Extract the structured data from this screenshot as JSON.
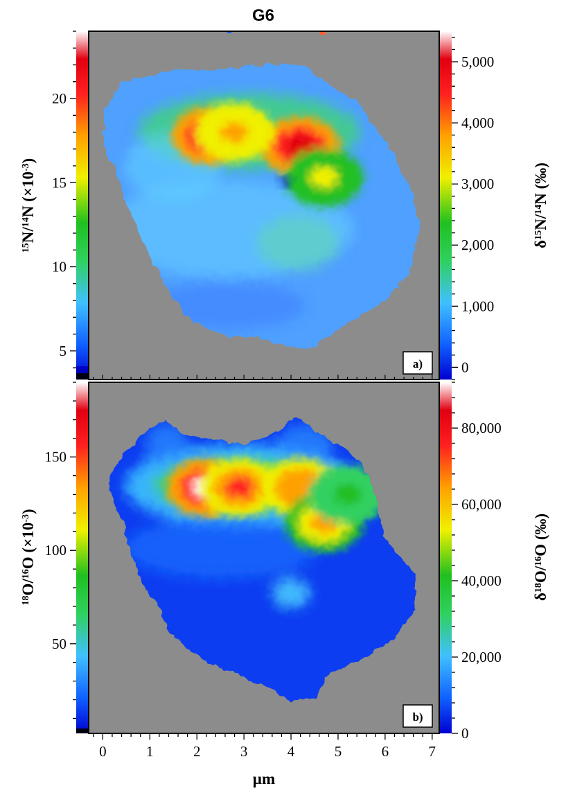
{
  "figure": {
    "title": "G6",
    "colors": {
      "background": "#8c8c8c",
      "colormap": [
        "#0000d0",
        "#1060ff",
        "#40c0ff",
        "#30d060",
        "#20c020",
        "#f0f000",
        "#ffa000",
        "#ff2020",
        "#e00010",
        "#ffffff"
      ]
    }
  },
  "chart_data": [
    {
      "type": "heatmap",
      "panel_label": "a)",
      "ylabel_left": {
        "sup1": "15",
        "mid": "N/",
        "sup2": "14",
        "end": "N (×10",
        "sup3": "-3",
        "close": ")"
      },
      "ylabel_right": {
        "pre": "δ",
        "sup1": "15",
        "mid": "N/",
        "sup2": "14",
        "end": "N (‰)"
      },
      "left_ticks": [
        "5",
        "10",
        "15",
        "20"
      ],
      "left_tick_values": [
        5,
        10,
        15,
        20
      ],
      "left_range": [
        3.3,
        24
      ],
      "right_ticks": [
        "0",
        "1,000",
        "2,000",
        "3,000",
        "4,000",
        "5,000"
      ],
      "right_tick_values": [
        0,
        1000,
        2000,
        3000,
        4000,
        5000
      ],
      "right_range": [
        -200,
        5500
      ],
      "hotspots": [
        {
          "x": 2.3,
          "y_frac": 0.3,
          "level": 0.95
        },
        {
          "x": 4.2,
          "y_frac": 0.33,
          "level": 0.88
        },
        {
          "x": 2.8,
          "y_frac": 0.29,
          "level": 0.7
        },
        {
          "x": 4.7,
          "y_frac": 0.42,
          "level": 0.55
        }
      ]
    },
    {
      "type": "heatmap",
      "panel_label": "b)",
      "ylabel_left": {
        "sup1": "18",
        "mid": "O/",
        "sup2": "16",
        "end": "O (×10",
        "sup3": "-3",
        "close": ")"
      },
      "ylabel_right": {
        "pre": "δ",
        "sup1": "18",
        "mid": "O/",
        "sup2": "16",
        "end": "O (‰)"
      },
      "left_ticks": [
        "50",
        "100",
        "150"
      ],
      "left_tick_values": [
        50,
        100,
        150
      ],
      "left_range": [
        2,
        190
      ],
      "right_ticks": [
        "0",
        "20,000",
        "40,000",
        "60,000",
        "80,000"
      ],
      "right_tick_values": [
        0,
        20000,
        40000,
        60000,
        80000
      ],
      "right_range": [
        0,
        92000
      ],
      "hotspots": [
        {
          "x": 2.2,
          "y_frac": 0.3,
          "level": 0.97
        },
        {
          "x": 2.9,
          "y_frac": 0.3,
          "level": 0.78
        },
        {
          "x": 4.2,
          "y_frac": 0.3,
          "level": 0.72
        },
        {
          "x": 4.7,
          "y_frac": 0.4,
          "level": 0.62
        },
        {
          "x": 5.2,
          "y_frac": 0.32,
          "level": 0.45
        }
      ]
    }
  ],
  "x_axis": {
    "label": "µm",
    "ticks": [
      "0",
      "1",
      "2",
      "3",
      "4",
      "5",
      "6",
      "7"
    ],
    "tick_values": [
      0,
      1,
      2,
      3,
      4,
      5,
      6,
      7
    ],
    "range": [
      -0.3,
      7.15
    ]
  }
}
